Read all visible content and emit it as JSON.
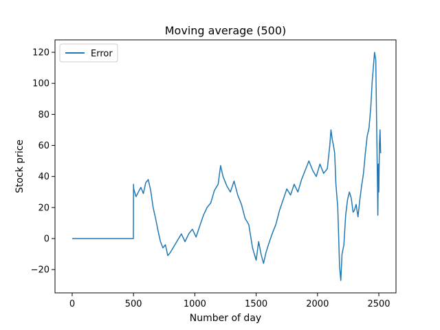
{
  "chart_data": {
    "type": "line",
    "title": "Moving average (500)",
    "xlabel": "Number of day",
    "ylabel": "Stock price",
    "xlim": [
      -140,
      2640
    ],
    "ylim": [
      -35,
      128
    ],
    "xticks": [
      0,
      500,
      1000,
      1500,
      2000,
      2500
    ],
    "yticks": [
      -20,
      0,
      20,
      40,
      60,
      80,
      100,
      120
    ],
    "legend": {
      "position": "top-left",
      "entries": [
        "Error"
      ]
    },
    "series": [
      {
        "name": "Error",
        "color": "#1f77b4",
        "x": [
          0,
          100,
          200,
          300,
          400,
          499,
          500,
          502,
          520,
          540,
          560,
          580,
          600,
          620,
          640,
          660,
          680,
          700,
          720,
          740,
          760,
          780,
          800,
          830,
          860,
          890,
          920,
          950,
          980,
          1010,
          1040,
          1070,
          1100,
          1130,
          1160,
          1190,
          1210,
          1230,
          1260,
          1290,
          1320,
          1350,
          1380,
          1410,
          1440,
          1470,
          1500,
          1520,
          1540,
          1560,
          1580,
          1600,
          1630,
          1660,
          1690,
          1720,
          1750,
          1780,
          1810,
          1840,
          1870,
          1900,
          1930,
          1960,
          1990,
          2020,
          2050,
          2080,
          2100,
          2110,
          2120,
          2130,
          2140,
          2150,
          2165,
          2180,
          2190,
          2200,
          2215,
          2230,
          2245,
          2260,
          2275,
          2290,
          2300,
          2315,
          2330,
          2345,
          2360,
          2375,
          2390,
          2405,
          2420,
          2435,
          2445,
          2455,
          2465,
          2475,
          2482,
          2488,
          2492,
          2496,
          2500,
          2505,
          2510,
          2515
        ],
        "y": [
          0,
          0,
          0,
          0,
          0,
          0,
          35,
          32,
          27,
          30,
          33,
          29,
          36,
          38,
          31,
          20,
          13,
          5,
          -2,
          -6,
          -4,
          -11,
          -9,
          -5,
          -1,
          3,
          -2,
          3,
          6,
          1,
          8,
          15,
          20,
          23,
          31,
          35,
          47,
          40,
          34,
          30,
          37,
          28,
          22,
          13,
          9,
          -6,
          -14,
          -2,
          -10,
          -16,
          -9,
          -4,
          3,
          9,
          18,
          25,
          32,
          28,
          35,
          30,
          38,
          44,
          50,
          44,
          40,
          48,
          42,
          45,
          60,
          70,
          64,
          60,
          55,
          35,
          20,
          -18,
          -27,
          -10,
          -4,
          15,
          25,
          30,
          26,
          17,
          18,
          22,
          14,
          25,
          34,
          42,
          55,
          66,
          71,
          85,
          100,
          110,
          120,
          115,
          75,
          40,
          15,
          48,
          30,
          60,
          70,
          55
        ]
      }
    ]
  }
}
